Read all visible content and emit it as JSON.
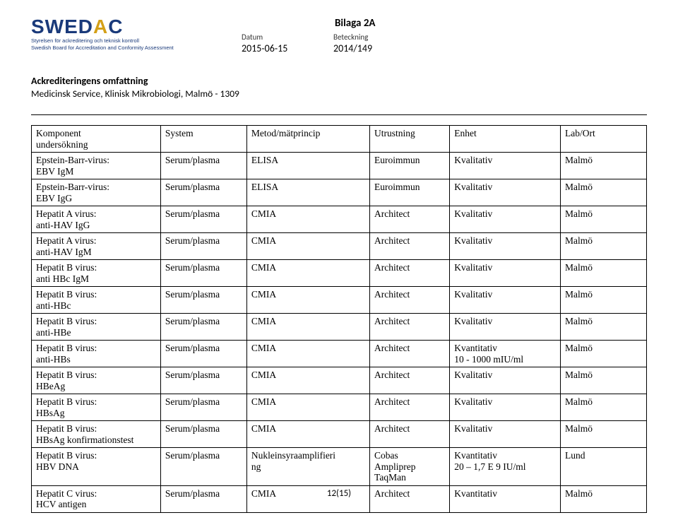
{
  "bilaga": "Bilaga 2A",
  "meta": {
    "datum_label": "Datum",
    "datum_value": "2015-06-15",
    "beteckn_label": "Beteckning",
    "beteckn_value": "2014/149"
  },
  "logo": {
    "name": "SWEDAC",
    "sub1": "Styrelsen för ackreditering och teknisk kontroll",
    "sub2": "Swedish Board for Accreditation and Conformity Assessment"
  },
  "accred": {
    "title": "Ackrediteringens omfattning",
    "sub": "Medicinsk Service, Klinisk Mikrobiologi, Malmö - 1309"
  },
  "table": {
    "headers": [
      "Komponent\nundersökning",
      "System",
      "Metod/mätprincip",
      "Utrustning",
      "Enhet",
      "Lab/Ort"
    ],
    "col_widths": [
      "21%",
      "14%",
      "20%",
      "13%",
      "18%",
      "14%"
    ],
    "rows": [
      [
        "Epstein-Barr-virus:\nEBV IgM",
        "Serum/plasma",
        "ELISA",
        "Euroimmun",
        "Kvalitativ",
        "Malmö"
      ],
      [
        "Epstein-Barr-virus:\nEBV IgG",
        "Serum/plasma",
        "ELISA",
        "Euroimmun",
        "Kvalitativ",
        "Malmö"
      ],
      [
        "Hepatit A virus:\nanti-HAV IgG",
        "Serum/plasma",
        "CMIA",
        "Architect",
        "Kvalitativ",
        "Malmö"
      ],
      [
        "Hepatit A virus:\nanti-HAV IgM",
        "Serum/plasma",
        "CMIA",
        "Architect",
        "Kvalitativ",
        "Malmö"
      ],
      [
        "Hepatit B virus:\nanti HBc IgM",
        "Serum/plasma",
        "CMIA",
        "Architect",
        "Kvalitativ",
        "Malmö"
      ],
      [
        "Hepatit B virus:\nanti-HBc",
        "Serum/plasma",
        "CMIA",
        "Architect",
        "Kvalitativ",
        "Malmö"
      ],
      [
        "Hepatit B virus:\nanti-HBe",
        "Serum/plasma",
        "CMIA",
        "Architect",
        "Kvalitativ",
        "Malmö"
      ],
      [
        "Hepatit B virus:\nanti-HBs",
        "Serum/plasma",
        "CMIA",
        "Architect",
        "Kvantitativ\n10 - 1000 mIU/ml",
        "Malmö"
      ],
      [
        "Hepatit B virus:\nHBeAg",
        "Serum/plasma",
        "CMIA",
        "Architect",
        "Kvalitativ",
        "Malmö"
      ],
      [
        "Hepatit B virus:\nHBsAg",
        "Serum/plasma",
        "CMIA",
        "Architect",
        "Kvalitativ",
        "Malmö"
      ],
      [
        "Hepatit B virus:\nHBsAg konfirmationstest",
        "Serum/plasma",
        "CMIA",
        "Architect",
        "Kvalitativ",
        "Malmö"
      ],
      [
        "Hepatit B virus:\nHBV DNA",
        "Serum/plasma",
        "Nukleinsyraamplifieri\nng",
        "Cobas\nAmpliprep\nTaqMan",
        "Kvantitativ\n20 – 1,7 E 9 IU/ml",
        "Lund"
      ],
      [
        "Hepatit C virus:\nHCV antigen",
        "Serum/plasma",
        "CMIA",
        "Architect",
        "Kvantitativ",
        "Malmö"
      ]
    ]
  },
  "page_number": "12(15)",
  "colors": {
    "brand_blue": "#1a3a7a",
    "brand_gold": "#d4a017",
    "text": "#000000",
    "bg": "#ffffff",
    "border": "#000000"
  },
  "fonts": {
    "body": "Times New Roman",
    "ui": "Calibri",
    "logo": "Arial"
  }
}
